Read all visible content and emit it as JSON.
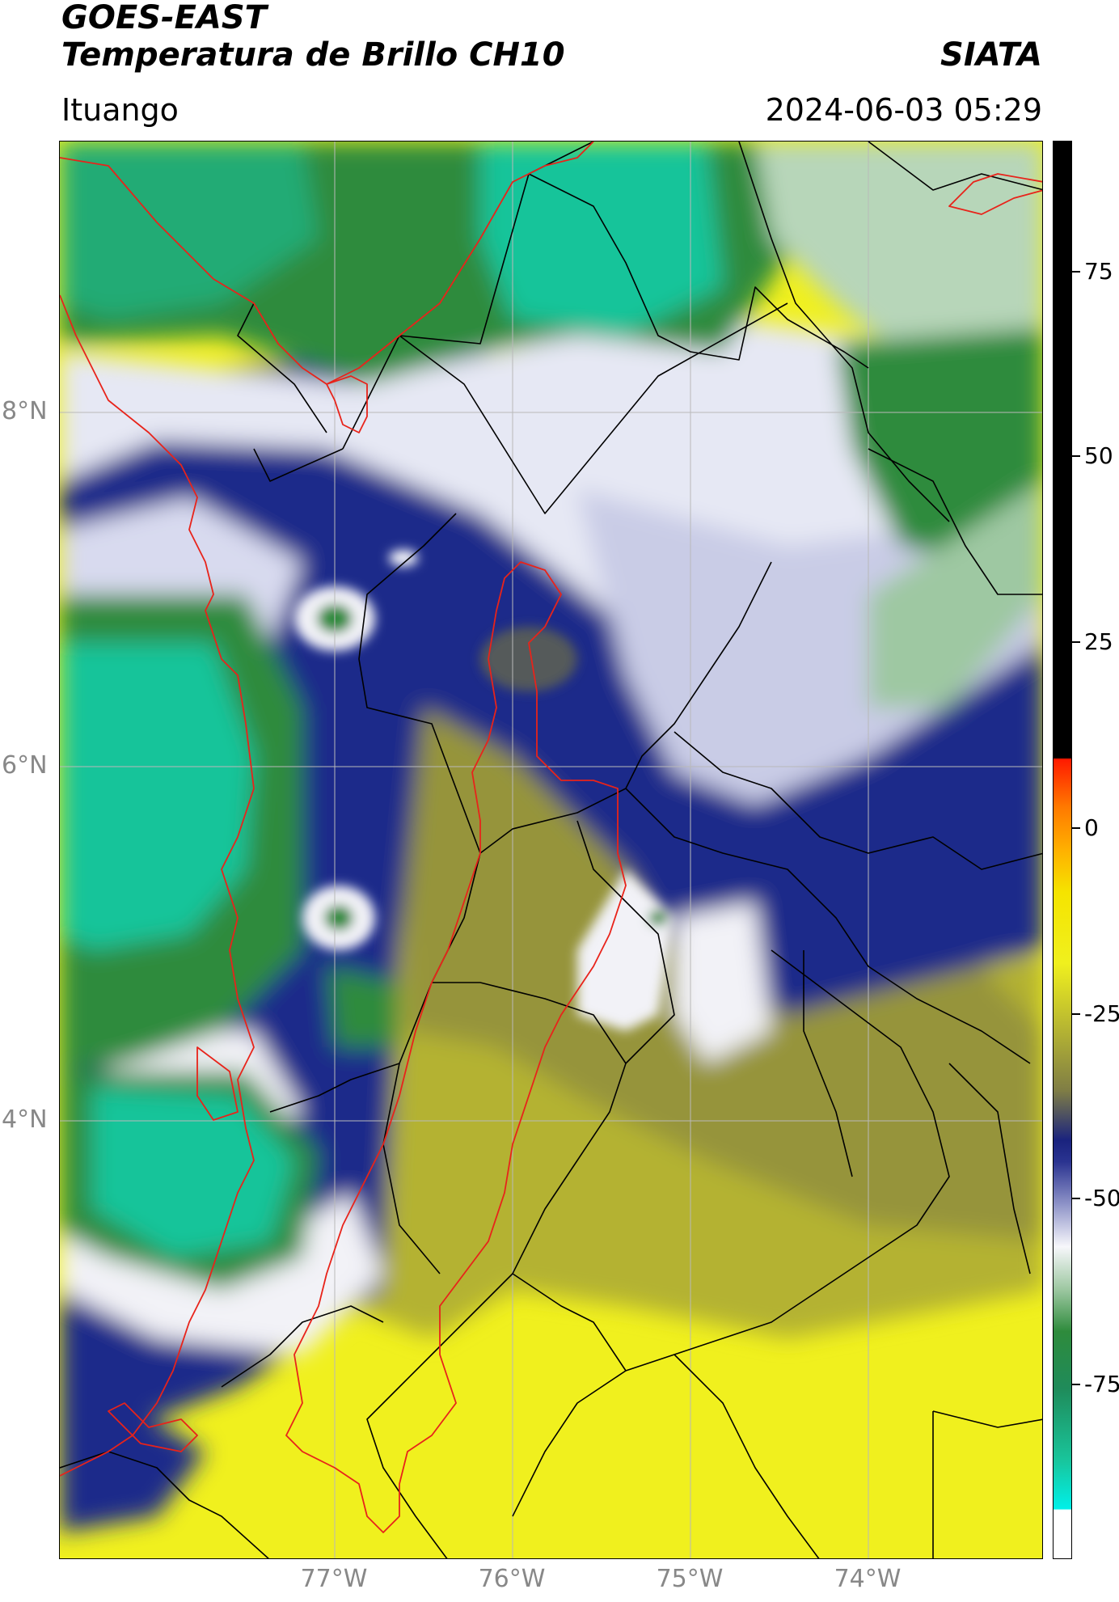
{
  "header": {
    "satellite": "GOES-EAST",
    "product": "Temperatura de Brillo CH10",
    "agency": "SIATA",
    "location": "Ituango",
    "datetime": "2024-06-03 05:29"
  },
  "map": {
    "latitude_labels": [
      "8°N",
      "6°N",
      "4°N"
    ],
    "longitude_labels": [
      "77°W",
      "76°W",
      "75°W",
      "74°W"
    ],
    "grid": true,
    "region_outline_color": "#e8231a",
    "border_color": "#000000",
    "colors": {
      "cold_cloud_green": "#2e8b3c",
      "coldest_teal": "#19c49a",
      "cloud_white": "#f2f2f7",
      "cloud_blue": "#1d2a8a",
      "warm_olive": "#8c8a3e",
      "warm_yellow": "#f0f01e"
    }
  },
  "colorbar": {
    "ticks": [
      "75",
      "50",
      "25",
      "0",
      "-25",
      "-50",
      "-75"
    ]
  }
}
